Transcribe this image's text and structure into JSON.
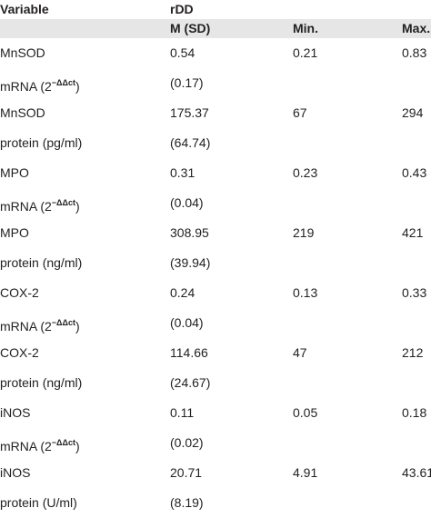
{
  "header": {
    "variable_label": "Variable",
    "group_label": "rDD",
    "columns": [
      "M (SD)",
      "Min.",
      "Max."
    ]
  },
  "rows": [
    {
      "variable": "MnSOD",
      "mean": "0.54",
      "min": "0.21",
      "max": "0.83"
    },
    {
      "variable": "mRNA (2",
      "sup": "−ΔΔct",
      "close": ")",
      "mean": "(0.17)",
      "min": "",
      "max": ""
    },
    {
      "variable": "MnSOD",
      "mean": "175.37",
      "min": "67",
      "max": "294"
    },
    {
      "variable": "protein (pg/ml)",
      "mean": "(64.74)",
      "min": "",
      "max": ""
    },
    {
      "variable": "MPO",
      "mean": "0.31",
      "min": "0.23",
      "max": "0.43"
    },
    {
      "variable": "mRNA (2",
      "sup": "−ΔΔct",
      "close": ")",
      "mean": "(0.04)",
      "min": "",
      "max": ""
    },
    {
      "variable": "MPO",
      "mean": "308.95",
      "min": "219",
      "max": "421"
    },
    {
      "variable": "protein (ng/ml)",
      "mean": "(39.94)",
      "min": "",
      "max": ""
    },
    {
      "variable": "COX-2",
      "mean": "0.24",
      "min": "0.13",
      "max": "0.33"
    },
    {
      "variable": "mRNA (2",
      "sup": "−ΔΔct",
      "close": ")",
      "mean": "(0.04)",
      "min": "",
      "max": ""
    },
    {
      "variable": "COX-2",
      "mean": "114.66",
      "min": "47",
      "max": "212"
    },
    {
      "variable": "protein (ng/ml)",
      "mean": "(24.67)",
      "min": "",
      "max": ""
    },
    {
      "variable": "iNOS",
      "mean": "0.11",
      "min": "0.05",
      "max": "0.18"
    },
    {
      "variable": "mRNA (2",
      "sup": "−ΔΔct",
      "close": ")",
      "mean": "(0.02)",
      "min": "",
      "max": ""
    },
    {
      "variable": "iNOS",
      "mean": "20.71",
      "min": "4.91",
      "max": "43.61"
    },
    {
      "variable": "protein (U/ml)",
      "mean": "(8.19)",
      "min": "",
      "max": ""
    }
  ]
}
